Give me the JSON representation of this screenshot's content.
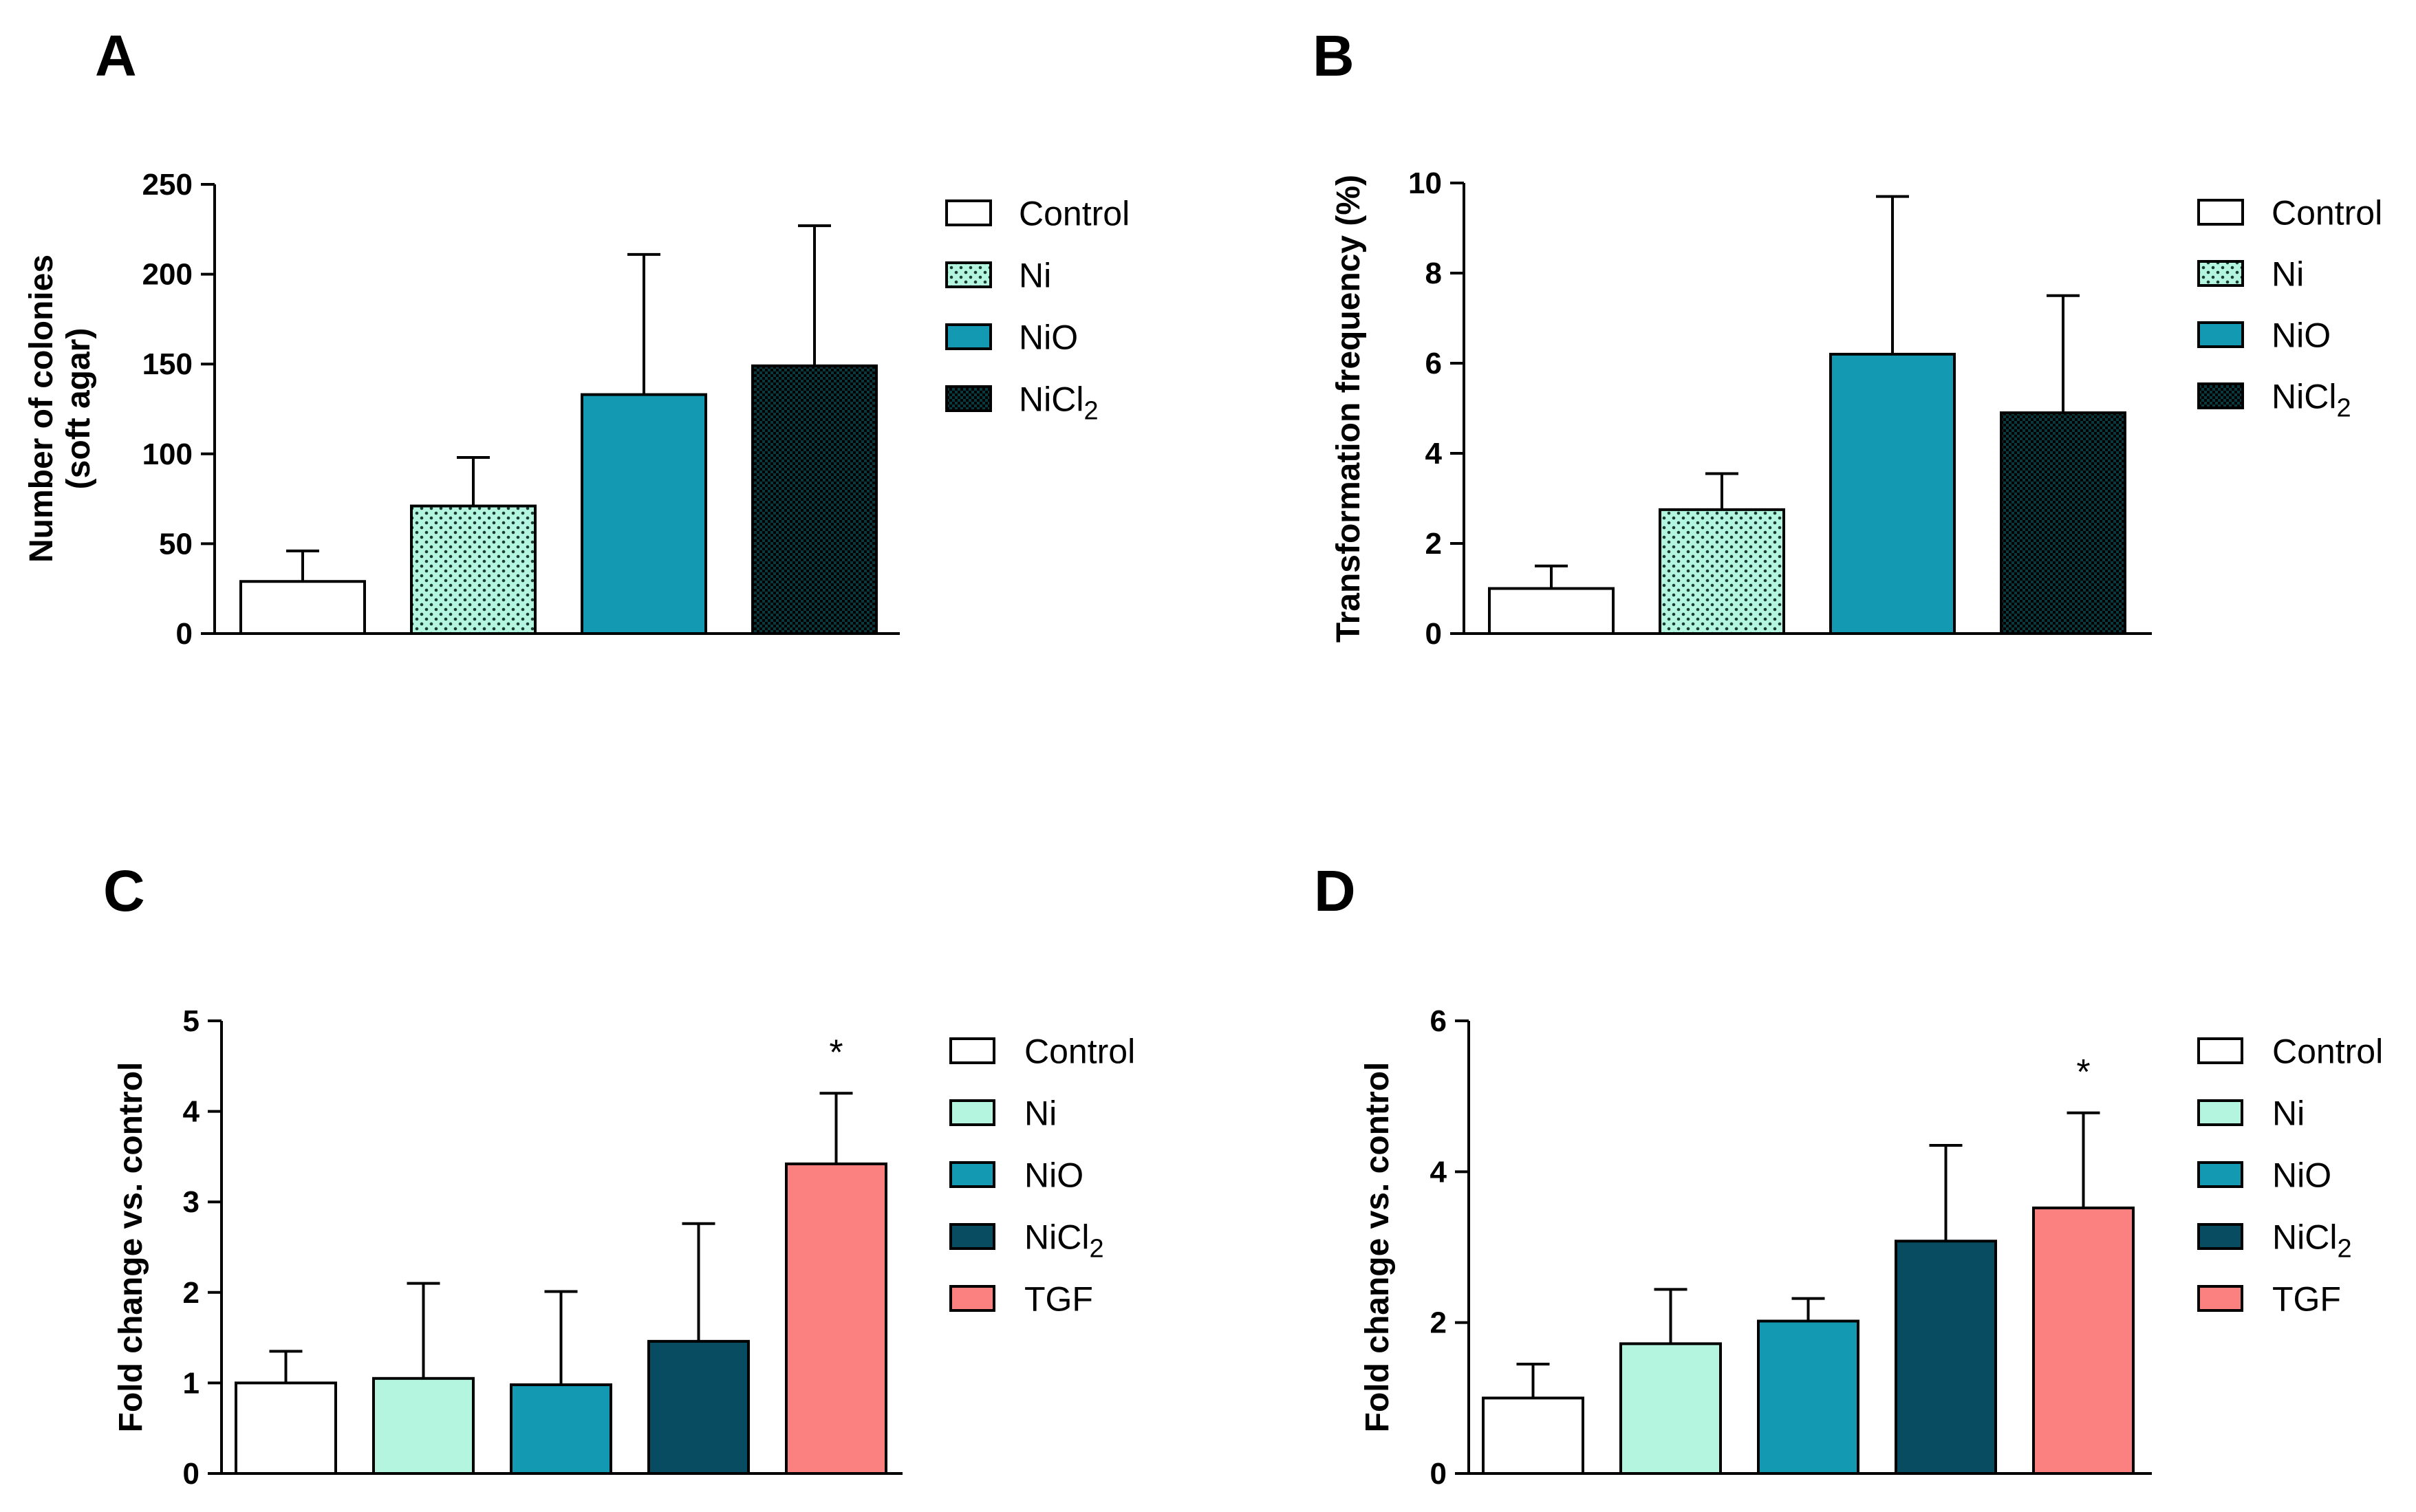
{
  "colors": {
    "Control": "#ffffff",
    "Ni": "#b3f5df",
    "NiO": "#1399b2",
    "NiCl2": "#074c60",
    "NiCl2_patterned": "#0b3940",
    "TGF": "#fb8181",
    "stroke": "#000000"
  },
  "chart_data": [
    {
      "type": "bar",
      "panel": "A",
      "title": "",
      "xlabel": "",
      "ylabel_lines": [
        "Number of colonies",
        "(soft agar)"
      ],
      "ylim": [
        0,
        250
      ],
      "yticks": [
        0,
        50,
        100,
        150,
        200,
        250
      ],
      "patterned": true,
      "series": [
        {
          "name": "Control",
          "label": "Control",
          "value": 29,
          "error": 17,
          "pattern": "none"
        },
        {
          "name": "Ni",
          "label": "Ni",
          "value": 71,
          "error": 27,
          "pattern": "dots"
        },
        {
          "name": "NiO",
          "label": "NiO",
          "value": 133,
          "error": 78,
          "pattern": "none"
        },
        {
          "name": "NiCl2",
          "label": "NiCl",
          "sub": "2",
          "value": 149,
          "error": 78,
          "pattern": "checker"
        }
      ]
    },
    {
      "type": "bar",
      "panel": "B",
      "title": "",
      "xlabel": "",
      "ylabel_lines": [
        "Transformation frequency (%)"
      ],
      "ylim": [
        0,
        10
      ],
      "yticks": [
        0,
        2,
        4,
        6,
        8,
        10
      ],
      "patterned": true,
      "series": [
        {
          "name": "Control",
          "label": "Control",
          "value": 1.0,
          "error": 0.5,
          "pattern": "none"
        },
        {
          "name": "Ni",
          "label": "Ni",
          "value": 2.75,
          "error": 0.8,
          "pattern": "dots"
        },
        {
          "name": "NiO",
          "label": "NiO",
          "value": 6.2,
          "error": 3.5,
          "pattern": "none"
        },
        {
          "name": "NiCl2",
          "label": "NiCl",
          "sub": "2",
          "value": 4.9,
          "error": 2.6,
          "pattern": "checker"
        }
      ]
    },
    {
      "type": "bar",
      "panel": "C",
      "title": "",
      "xlabel": "",
      "ylabel_lines": [
        "Fold change vs. control"
      ],
      "ylim": [
        0,
        5
      ],
      "yticks": [
        0,
        1,
        2,
        3,
        4,
        5
      ],
      "patterned": false,
      "series": [
        {
          "name": "Control",
          "label": "Control",
          "value": 1.0,
          "error": 0.35,
          "pattern": "none"
        },
        {
          "name": "Ni",
          "label": "Ni",
          "value": 1.05,
          "error": 1.05,
          "pattern": "none"
        },
        {
          "name": "NiO",
          "label": "NiO",
          "value": 0.98,
          "error": 1.03,
          "pattern": "none"
        },
        {
          "name": "NiCl2",
          "label": "NiCl",
          "sub": "2",
          "value": 1.46,
          "error": 1.3,
          "pattern": "none"
        },
        {
          "name": "TGF",
          "label": "TGF",
          "value": 3.42,
          "error": 0.78,
          "pattern": "none",
          "significance": "*"
        }
      ]
    },
    {
      "type": "bar",
      "panel": "D",
      "title": "",
      "xlabel": "",
      "ylabel_lines": [
        "Fold change vs. control"
      ],
      "ylim": [
        0,
        6
      ],
      "yticks": [
        0,
        2,
        4,
        6
      ],
      "patterned": false,
      "series": [
        {
          "name": "Control",
          "label": "Control",
          "value": 1.0,
          "error": 0.45,
          "pattern": "none"
        },
        {
          "name": "Ni",
          "label": "Ni",
          "value": 1.72,
          "error": 0.72,
          "pattern": "none"
        },
        {
          "name": "NiO",
          "label": "NiO",
          "value": 2.02,
          "error": 0.3,
          "pattern": "none"
        },
        {
          "name": "NiCl2",
          "label": "NiCl",
          "sub": "2",
          "value": 3.08,
          "error": 1.27,
          "pattern": "none"
        },
        {
          "name": "TGF",
          "label": "TGF",
          "value": 3.52,
          "error": 1.26,
          "pattern": "none",
          "significance": "*"
        }
      ]
    }
  ]
}
